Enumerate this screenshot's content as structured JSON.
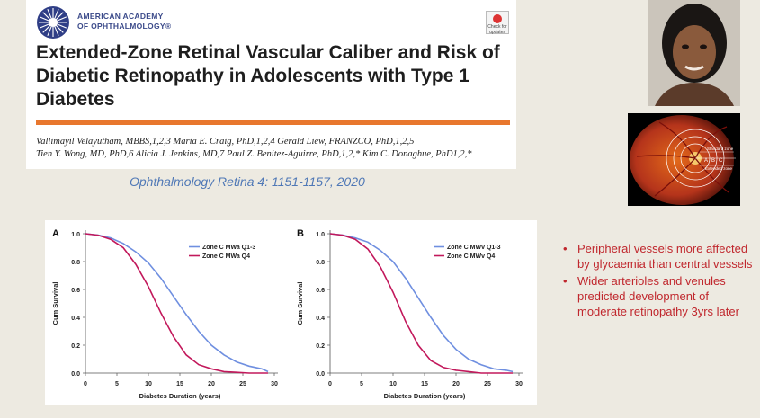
{
  "journal": {
    "academy_line1": "AMERICAN ACADEMY",
    "academy_line2": "OF OPHTHALMOLOGY®",
    "check_label": "Check for updates",
    "title": "Extended-Zone Retinal Vascular Caliber and Risk of Diabetic Retinopathy in Adolescents with Type 1 Diabetes",
    "authors_line1": "Vallimayil Velayutham, MBBS,1,2,3 Maria E. Craig, PhD,1,2,4 Gerald Liew, FRANZCO, PhD,1,2,5",
    "authors_line2": "Tien Y. Wong, MD, PhD,6 Alicia J. Jenkins, MD,7 Paul Z. Benitez-Aguirre, PhD,1,2,* Kim C. Donaghue, PhD1,2,*",
    "accent_color": "#e8772e"
  },
  "citation": "Ophthalmology Retina 4: 1151-1157, 2020",
  "fundus": {
    "zone_top": "Standard zone",
    "zone_labels": [
      "A",
      "B",
      "C"
    ],
    "zone_bottom": "Extended zone"
  },
  "bullets": [
    "Peripheral vessels more affected by glycaemia than central vessels",
    "Wider arterioles and venules predicted development of moderate retinopathy 3yrs later"
  ],
  "chart_data": [
    {
      "type": "line",
      "panel": "A",
      "xlabel": "Diabetes Duration (years)",
      "ylabel": "Cum Survival",
      "xlim": [
        0,
        30
      ],
      "ylim": [
        0,
        1
      ],
      "xticks": [
        0,
        5,
        10,
        15,
        20,
        25,
        30
      ],
      "yticks": [
        0.0,
        0.2,
        0.4,
        0.6,
        0.8,
        1.0
      ],
      "ytick_labels": [
        "0.0",
        "0.2",
        "0.4",
        "0.6",
        "0.8",
        "1.0"
      ],
      "series": [
        {
          "name": "Zone C MWa Q1-3",
          "color": "#6f8fe0",
          "x": [
            0,
            2,
            4,
            6,
            8,
            10,
            12,
            14,
            16,
            18,
            20,
            22,
            24,
            26,
            28,
            29
          ],
          "y": [
            1.0,
            0.99,
            0.97,
            0.93,
            0.87,
            0.79,
            0.68,
            0.55,
            0.42,
            0.3,
            0.2,
            0.13,
            0.08,
            0.05,
            0.03,
            0.01
          ]
        },
        {
          "name": "Zone C MWa Q4",
          "color": "#c2185b",
          "x": [
            0,
            2,
            4,
            6,
            8,
            10,
            12,
            14,
            16,
            18,
            20,
            22,
            24,
            26,
            28,
            29
          ],
          "y": [
            1.0,
            0.99,
            0.96,
            0.9,
            0.78,
            0.62,
            0.43,
            0.26,
            0.13,
            0.06,
            0.03,
            0.01,
            0.005,
            0.0,
            0.0,
            0.0
          ]
        }
      ]
    },
    {
      "type": "line",
      "panel": "B",
      "xlabel": "Diabetes Duration (years)",
      "ylabel": "Cum Survival",
      "xlim": [
        0,
        30
      ],
      "ylim": [
        0,
        1
      ],
      "xticks": [
        0,
        5,
        10,
        15,
        20,
        25,
        30
      ],
      "yticks": [
        0.0,
        0.2,
        0.4,
        0.6,
        0.8,
        1.0
      ],
      "ytick_labels": [
        "0.0",
        "0.2",
        "0.4",
        "0.6",
        "0.8",
        "1.0"
      ],
      "series": [
        {
          "name": "Zone C MWv Q1-3",
          "color": "#6f8fe0",
          "x": [
            0,
            2,
            4,
            6,
            8,
            10,
            12,
            14,
            16,
            18,
            20,
            22,
            24,
            26,
            28,
            29
          ],
          "y": [
            1.0,
            0.99,
            0.97,
            0.94,
            0.88,
            0.8,
            0.68,
            0.54,
            0.4,
            0.27,
            0.17,
            0.1,
            0.06,
            0.03,
            0.02,
            0.01
          ]
        },
        {
          "name": "Zone C MWv Q4",
          "color": "#c2185b",
          "x": [
            0,
            2,
            4,
            6,
            8,
            10,
            12,
            14,
            16,
            18,
            20,
            22,
            24,
            26,
            28,
            29
          ],
          "y": [
            1.0,
            0.99,
            0.96,
            0.89,
            0.76,
            0.58,
            0.37,
            0.2,
            0.09,
            0.04,
            0.02,
            0.01,
            0.0,
            0.0,
            0.0,
            0.0
          ]
        }
      ]
    }
  ]
}
